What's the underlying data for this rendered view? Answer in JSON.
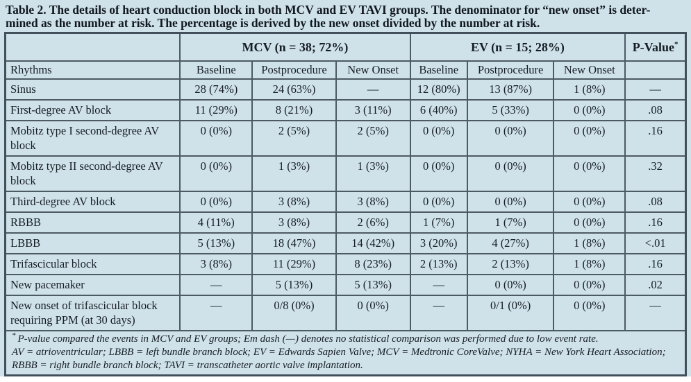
{
  "page": {
    "background_color": "#cfe2ea",
    "border_color": "#4c5a63",
    "text_color": "#171d24"
  },
  "caption": {
    "lines": [
      "Table 2. The details of heart conduction block in both MCV and EV TAVI groups. The denominator for “new onset” is deter-",
      "mined as the number at risk. The percentage is derived by the new onset divided by the number at risk."
    ]
  },
  "table": {
    "group_headers": [
      {
        "label": "MCV (n = 38; 72%)",
        "span": 3
      },
      {
        "label": "EV (n = 15; 28%)",
        "span": 3
      }
    ],
    "pvalue_header": {
      "label": "P-Value",
      "sup": "*"
    },
    "column_headers": [
      "Rhythms",
      "Baseline",
      "Postprocedure",
      "New Onset",
      "Baseline",
      "Postprocedure",
      "New Onset",
      ""
    ],
    "rows": [
      {
        "rhythm": "Sinus",
        "cells": [
          "28 (74%)",
          "24 (63%)",
          "—",
          "12 (80%)",
          "13 (87%)",
          "1 (8%)",
          "—"
        ]
      },
      {
        "rhythm": "First-degree AV block",
        "cells": [
          "11 (29%)",
          "8 (21%)",
          "3 (11%)",
          "6 (40%)",
          "5 (33%)",
          "0 (0%)",
          ".08"
        ]
      },
      {
        "rhythm": "Mobitz type I second-degree AV block",
        "cells": [
          "0 (0%)",
          "2 (5%)",
          "2 (5%)",
          "0 (0%)",
          "0 (0%)",
          "0 (0%)",
          ".16"
        ]
      },
      {
        "rhythm": "Mobitz type II second-degree AV block",
        "cells": [
          "0 (0%)",
          "1 (3%)",
          "1 (3%)",
          "0 (0%)",
          "0 (0%)",
          "0 (0%)",
          ".32"
        ]
      },
      {
        "rhythm": "Third-degree AV block",
        "cells": [
          "0 (0%)",
          "3 (8%)",
          "3 (8%)",
          "0 (0%)",
          "0 (0%)",
          "0 (0%)",
          ".08"
        ]
      },
      {
        "rhythm": "RBBB",
        "cells": [
          "4 (11%)",
          "3 (8%)",
          "2 (6%)",
          "1 (7%)",
          "1 (7%)",
          "0 (0%)",
          ".16"
        ]
      },
      {
        "rhythm": "LBBB",
        "cells": [
          "5 (13%)",
          "18 (47%)",
          "14 (42%)",
          "3 (20%)",
          "4 (27%)",
          "1 (8%)",
          "<.01"
        ]
      },
      {
        "rhythm": "Trifascicular block",
        "cells": [
          "3 (8%)",
          "11 (29%)",
          "8 (23%)",
          "2 (13%)",
          "2 (13%)",
          "1 (8%)",
          ".16"
        ]
      },
      {
        "rhythm": "New pacemaker",
        "cells": [
          "—",
          "5 (13%)",
          "5 (13%)",
          "—",
          "0 (0%)",
          "0 (0%)",
          ".02"
        ]
      },
      {
        "rhythm": "New onset of trifascicular block requiring PPM (at 30 days)",
        "cells": [
          "—",
          "0/8 (0%)",
          "0 (0%)",
          "—",
          "0/1 (0%)",
          "0 (0%)",
          "—"
        ]
      }
    ],
    "footnotes": [
      {
        "sup": "*",
        "text": "P-value compared the events in MCV and EV groups; Em dash (—) denotes no statistical comparison was performed due to low event rate."
      },
      {
        "sup": "",
        "text": "AV = atrioventricular; LBBB = left bundle branch block; EV = Edwards Sapien Valve; MCV = Medtronic CoreValve; NYHA = New York Heart Association; RBBB = right bundle branch block; TAVI = transcatheter aortic valve implantation."
      }
    ]
  }
}
